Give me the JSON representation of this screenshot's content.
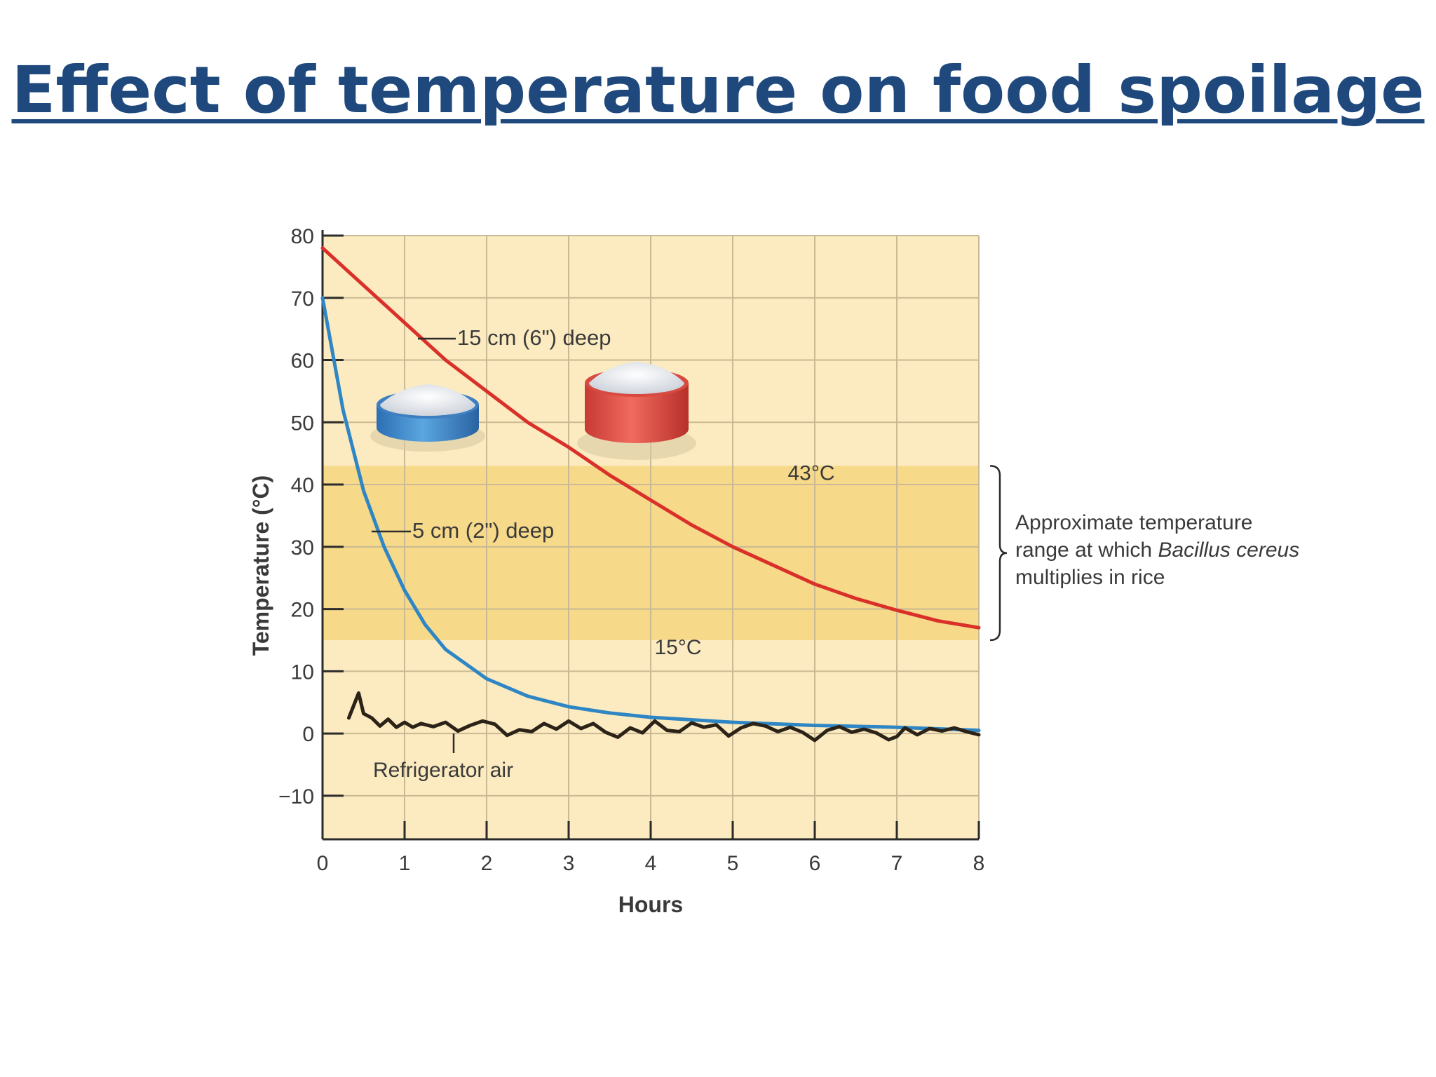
{
  "slide": {
    "title": "Effect of temperature on food spoilage",
    "title_color": "#1f497d"
  },
  "chart_data": {
    "type": "line",
    "title": "",
    "xlabel": "Hours",
    "ylabel": "Temperature (°C)",
    "xlim": [
      0,
      8
    ],
    "ylim": [
      -17,
      80
    ],
    "x_ticks": [
      "0",
      "1",
      "2",
      "3",
      "4",
      "5",
      "6",
      "7",
      "8"
    ],
    "y_ticks": [
      "80",
      "70",
      "60",
      "50",
      "40",
      "30",
      "20",
      "10",
      "0",
      "−10"
    ],
    "y_tick_values": [
      80,
      70,
      60,
      50,
      40,
      30,
      20,
      10,
      0,
      -10
    ],
    "grid": true,
    "band": {
      "low": 15,
      "high": 43,
      "low_label": "15°C",
      "high_label": "43°C",
      "annotation_lines": [
        "Approximate temperature",
        "range at which ",
        "multiplies in rice"
      ],
      "annotation_italic": "Bacillus cereus"
    },
    "series": [
      {
        "name": "15 cm (6\") deep",
        "color": "#d9302a",
        "x": [
          0,
          0.5,
          1,
          1.5,
          2,
          2.5,
          3,
          3.5,
          4,
          4.5,
          5,
          5.5,
          6,
          6.5,
          7,
          7.5,
          8
        ],
        "y": [
          78,
          72,
          66,
          60,
          55,
          50,
          46,
          41.5,
          37.5,
          33.5,
          30,
          27,
          24,
          21.7,
          19.8,
          18.1,
          17
        ]
      },
      {
        "name": "5 cm (2\") deep",
        "color": "#2f86c4",
        "x": [
          0,
          0.25,
          0.5,
          0.75,
          1,
          1.25,
          1.5,
          2,
          2.5,
          3,
          3.5,
          4,
          5,
          6,
          7,
          8
        ],
        "y": [
          70,
          52,
          39,
          30,
          23,
          17.5,
          13.5,
          8.8,
          6,
          4.3,
          3.3,
          2.6,
          1.8,
          1.3,
          1,
          0.5
        ]
      },
      {
        "name": "Refrigerator air",
        "color": "#2b2218",
        "x": [
          0.32,
          0.38,
          0.44,
          0.5,
          0.6,
          0.7,
          0.8,
          0.9,
          1.0,
          1.1,
          1.2,
          1.35,
          1.5,
          1.65,
          1.8,
          1.95,
          2.1,
          2.25,
          2.4,
          2.55,
          2.7,
          2.85,
          3.0,
          3.15,
          3.3,
          3.45,
          3.6,
          3.75,
          3.9,
          4.05,
          4.2,
          4.35,
          4.5,
          4.65,
          4.8,
          4.95,
          5.1,
          5.25,
          5.4,
          5.55,
          5.7,
          5.85,
          6.0,
          6.15,
          6.3,
          6.45,
          6.6,
          6.75,
          6.9,
          7.0,
          7.1,
          7.25,
          7.4,
          7.55,
          7.7,
          7.85,
          8.0
        ],
        "y": [
          2.5,
          4.5,
          6.5,
          3.2,
          2.5,
          1.2,
          2.3,
          1.0,
          1.8,
          1.0,
          1.6,
          1.1,
          1.8,
          0.4,
          1.3,
          2.0,
          1.5,
          -0.3,
          0.6,
          0.3,
          1.6,
          0.7,
          2.0,
          0.8,
          1.6,
          0.2,
          -0.6,
          0.9,
          0.1,
          2.0,
          0.5,
          0.3,
          1.7,
          1.0,
          1.4,
          -0.4,
          0.9,
          1.6,
          1.2,
          0.3,
          1.0,
          0.2,
          -1.1,
          0.5,
          1.1,
          0.2,
          0.7,
          0.1,
          -1.0,
          -0.5,
          0.9,
          -0.2,
          0.8,
          0.4,
          0.9,
          0.3,
          -0.2
        ]
      }
    ],
    "colors": {
      "plot_background": "#fcebc0",
      "band_fill": "#f7d98a",
      "grid": "#c9b994",
      "axis": "#2b2b2b",
      "text": "#3a3a3a"
    }
  }
}
